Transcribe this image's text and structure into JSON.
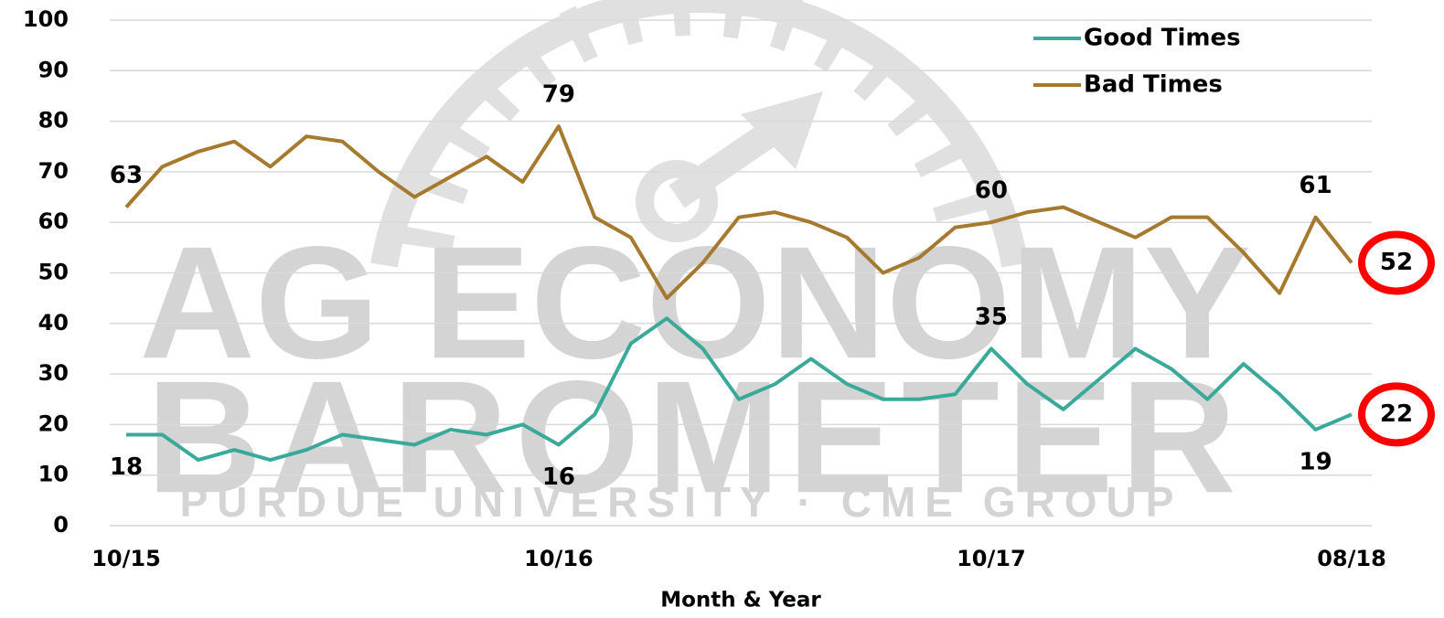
{
  "chart_data": {
    "type": "line",
    "x_label": "Month & Year",
    "watermark": [
      "AG ECONOMY",
      "BAROMETER",
      "PURDUE UNIVERSITY · CME GROUP"
    ],
    "categories": [
      "10/15",
      null,
      null,
      null,
      null,
      null,
      null,
      null,
      null,
      null,
      null,
      null,
      "10/16",
      null,
      null,
      null,
      null,
      null,
      null,
      null,
      null,
      null,
      null,
      null,
      "10/17",
      null,
      null,
      null,
      null,
      null,
      null,
      null,
      null,
      null,
      "08/18"
    ],
    "series": [
      {
        "name": "Good Times",
        "color": "#3aa99a",
        "values": [
          18,
          18,
          13,
          15,
          13,
          15,
          18,
          17,
          16,
          19,
          18,
          20,
          16,
          22,
          36,
          41,
          35,
          25,
          28,
          33,
          28,
          25,
          25,
          26,
          35,
          28,
          23,
          29,
          35,
          31,
          25,
          32,
          26,
          19,
          22
        ],
        "data_labels": [
          {
            "index": 0,
            "position": "below"
          },
          {
            "index": 12,
            "position": "below"
          },
          {
            "index": 24,
            "position": "above"
          },
          {
            "index": 33,
            "position": "below"
          }
        ],
        "circled": [
          34
        ]
      },
      {
        "name": "Bad Times",
        "color": "#a57a2e",
        "values": [
          63,
          71,
          74,
          76,
          71,
          77,
          76,
          70,
          65,
          69,
          73,
          68,
          79,
          61,
          57,
          45,
          52,
          61,
          62,
          60,
          57,
          50,
          53,
          59,
          60,
          62,
          63,
          60,
          57,
          61,
          61,
          54,
          46,
          61,
          52
        ],
        "data_labels": [
          {
            "index": 0,
            "position": "above"
          },
          {
            "index": 12,
            "position": "above"
          },
          {
            "index": 24,
            "position": "above"
          },
          {
            "index": 33,
            "position": "above"
          }
        ],
        "circled": [
          34
        ]
      }
    ],
    "ylim": [
      0,
      100
    ],
    "yticks": [
      0,
      10,
      20,
      30,
      40,
      50,
      60,
      70,
      80,
      90,
      100
    ],
    "grid": true,
    "legend": "top-right",
    "circle_color": "#ff0000"
  }
}
